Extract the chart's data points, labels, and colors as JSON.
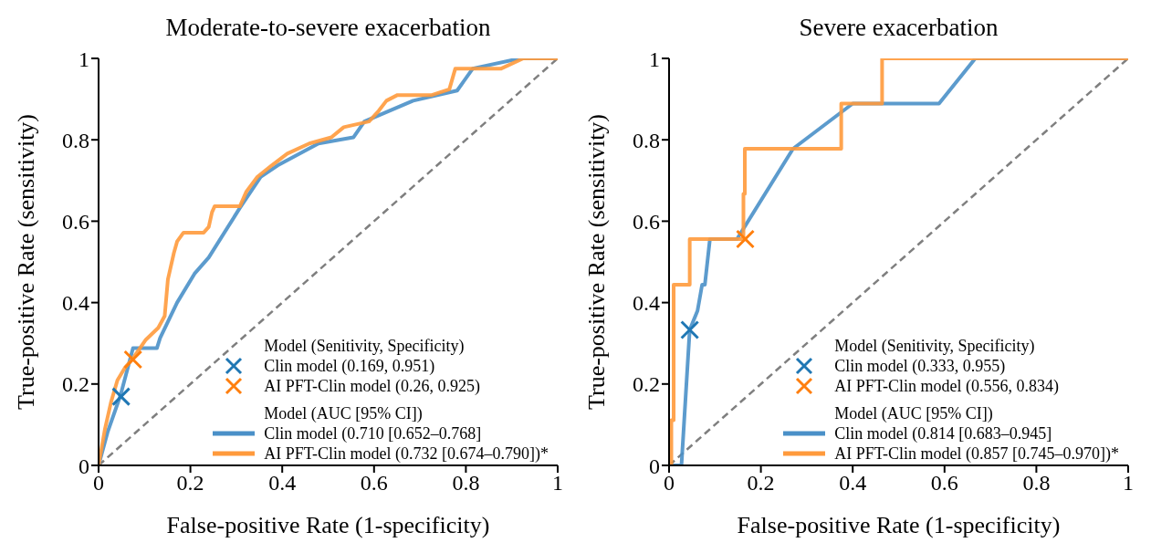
{
  "chart_data": [
    {
      "type": "line",
      "title": "Moderate-to-severe exacerbation",
      "xlabel": "False-positive Rate (1-specificity)",
      "ylabel": "True-positive Rate (sensitivity)",
      "xlim": [
        0,
        1
      ],
      "ylim": [
        0,
        1
      ],
      "xticks": [
        0,
        0.2,
        0.4,
        0.6,
        0.8,
        1
      ],
      "yticks": [
        0,
        0.2,
        0.4,
        0.6,
        0.8,
        1
      ],
      "grid": false,
      "legend": "lower right",
      "legend_title": "Model (AUC [95% CI])",
      "annotations": [
        "Model (Senitivity, Specificity)"
      ],
      "series": [
        {
          "color": "#7f7f7f",
          "line_style": "dashed",
          "x": [
            0,
            1
          ],
          "values": [
            0,
            1
          ]
        },
        {
          "name": "Clin model (0.710 [0.652–0.768]",
          "color": "#4a90c8",
          "line_style": "solid",
          "x": [
            0,
            0.02,
            0.048,
            0.075,
            0.127,
            0.134,
            0.171,
            0.209,
            0.24,
            0.308,
            0.353,
            0.39,
            0.479,
            0.555,
            0.579,
            0.685,
            0.781,
            0.815,
            0.918,
            1
          ],
          "values": [
            0,
            0.083,
            0.173,
            0.288,
            0.288,
            0.313,
            0.4,
            0.471,
            0.511,
            0.633,
            0.709,
            0.737,
            0.791,
            0.806,
            0.845,
            0.896,
            0.921,
            0.975,
            1,
            1
          ]
        },
        {
          "name": "AI PFT-Clin model (0.732 [0.674–0.790])*",
          "color": "#ff9a3c",
          "line_style": "solid",
          "x": [
            0,
            0.014,
            0.027,
            0.041,
            0.058,
            0.075,
            0.103,
            0.13,
            0.144,
            0.151,
            0.164,
            0.171,
            0.185,
            0.229,
            0.24,
            0.247,
            0.253,
            0.308,
            0.322,
            0.346,
            0.377,
            0.411,
            0.459,
            0.507,
            0.534,
            0.589,
            0.61,
            0.627,
            0.651,
            0.726,
            0.764,
            0.777,
            0.877,
            0.925,
            1
          ],
          "values": [
            0,
            0.09,
            0.155,
            0.209,
            0.241,
            0.263,
            0.309,
            0.338,
            0.367,
            0.457,
            0.522,
            0.55,
            0.572,
            0.572,
            0.586,
            0.622,
            0.637,
            0.637,
            0.673,
            0.709,
            0.737,
            0.766,
            0.791,
            0.806,
            0.831,
            0.845,
            0.871,
            0.896,
            0.91,
            0.91,
            0.924,
            0.975,
            0.975,
            1,
            1
          ]
        },
        {
          "type": "scatter",
          "name": "Clin model (0.169, 0.951)",
          "color": "#1f77b4",
          "marker": "cross",
          "x": [
            0.049
          ],
          "values": [
            0.169
          ]
        },
        {
          "type": "scatter",
          "name": "AI PFT-Clin model (0.26, 0.925)",
          "color": "#ff7f0e",
          "marker": "cross",
          "x": [
            0.075
          ],
          "values": [
            0.26
          ]
        }
      ]
    },
    {
      "type": "line",
      "title": "Severe exacerbation",
      "xlabel": "False-positive Rate (1-specificity)",
      "ylabel": "True-positive Rate (sensitivity)",
      "xlim": [
        0,
        1
      ],
      "ylim": [
        0,
        1
      ],
      "xticks": [
        0,
        0.2,
        0.4,
        0.6,
        0.8,
        1
      ],
      "yticks": [
        0,
        0.2,
        0.4,
        0.6,
        0.8,
        1
      ],
      "grid": false,
      "legend": "lower right",
      "legend_title": "Model (AUC [95% CI])",
      "annotations": [
        "Model (Senitivity, Specificity)"
      ],
      "series": [
        {
          "color": "#7f7f7f",
          "line_style": "dashed",
          "x": [
            0,
            1
          ],
          "values": [
            0,
            1
          ]
        },
        {
          "name": "Clin model (0.814 [0.683–0.945]",
          "color": "#4a90c8",
          "line_style": "solid",
          "x": [
            0,
            0.027,
            0.045,
            0.062,
            0.072,
            0.078,
            0.089,
            0.148,
            0.27,
            0.4,
            0.588,
            0.667,
            1
          ],
          "values": [
            0,
            0,
            0.333,
            0.38,
            0.444,
            0.444,
            0.556,
            0.556,
            0.778,
            0.889,
            0.889,
            1,
            1
          ]
        },
        {
          "name": "AI PFT-Clin model (0.857 [0.745–0.970])*",
          "color": "#ff9a3c",
          "line_style": "solid",
          "x": [
            0,
            0.005,
            0.005,
            0.01,
            0.01,
            0.045,
            0.045,
            0.162,
            0.162,
            0.165,
            0.165,
            0.375,
            0.375,
            0.464,
            0.464,
            1
          ],
          "values": [
            0,
            0,
            0.111,
            0.111,
            0.444,
            0.444,
            0.556,
            0.556,
            0.667,
            0.667,
            0.778,
            0.778,
            0.889,
            0.889,
            1,
            1
          ]
        },
        {
          "type": "scatter",
          "name": "Clin model (0.333, 0.955)",
          "color": "#1f77b4",
          "marker": "cross",
          "x": [
            0.045
          ],
          "values": [
            0.333
          ]
        },
        {
          "type": "scatter",
          "name": "AI PFT-Clin model (0.556, 0.834)",
          "color": "#ff7f0e",
          "marker": "cross",
          "x": [
            0.166
          ],
          "values": [
            0.556
          ]
        }
      ]
    }
  ]
}
